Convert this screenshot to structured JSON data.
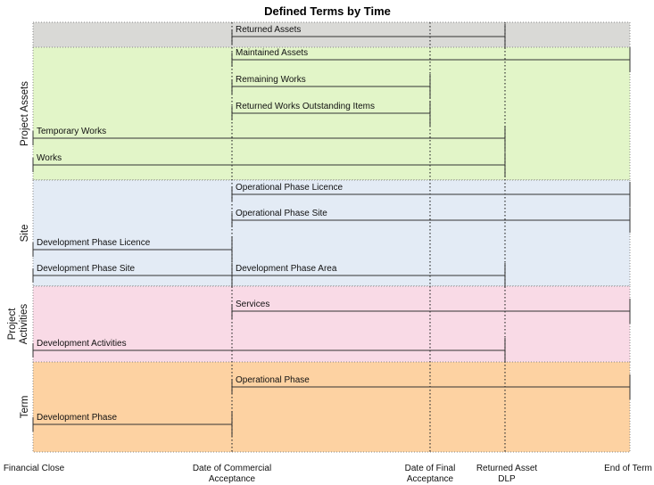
{
  "title": "Defined Terms by Time",
  "milestones": [
    {
      "id": "fc",
      "label": [
        "Financial Close"
      ]
    },
    {
      "id": "dca",
      "label": [
        "Date of Commercial",
        "Acceptance"
      ]
    },
    {
      "id": "dfa",
      "label": [
        "Date of Final",
        "Acceptance"
      ]
    },
    {
      "id": "rad",
      "label": [
        "Returned Asset",
        "DLP"
      ]
    },
    {
      "id": "eot",
      "label": [
        "End of Term"
      ]
    }
  ],
  "bands": [
    {
      "id": "returned",
      "name": "",
      "color": "#d9d9d6"
    },
    {
      "id": "assets",
      "name": [
        "Project Assets"
      ],
      "color": "#e2f5c8"
    },
    {
      "id": "site",
      "name": [
        "Site"
      ],
      "color": "#e3ebf5"
    },
    {
      "id": "activities",
      "name": [
        "Project",
        "Activities"
      ],
      "color": "#f9dae6"
    },
    {
      "id": "term",
      "name": [
        "Term"
      ],
      "color": "#fdd2a2"
    }
  ],
  "terms": [
    {
      "label": "Returned Assets",
      "band": "returned",
      "start": "dca",
      "end": "rad"
    },
    {
      "label": "Maintained Assets",
      "band": "assets",
      "start": "dca",
      "end": "eot"
    },
    {
      "label": "Remaining Works",
      "band": "assets",
      "start": "dca",
      "end": "dfa"
    },
    {
      "label": "Returned Works Outstanding Items",
      "band": "assets",
      "start": "dca",
      "end": "dfa"
    },
    {
      "label": "Temporary Works",
      "band": "assets",
      "start": "fc",
      "end": "rad"
    },
    {
      "label": "Works",
      "band": "assets",
      "start": "fc",
      "end": "rad"
    },
    {
      "label": "Operational Phase Licence",
      "band": "site",
      "start": "dca",
      "end": "eot"
    },
    {
      "label": "Operational Phase Site",
      "band": "site",
      "start": "dca",
      "end": "eot"
    },
    {
      "label": "Development Phase Licence",
      "band": "site",
      "start": "fc",
      "end": "dca"
    },
    {
      "label": "Development Phase Site",
      "band": "site",
      "start": "fc",
      "end": "dca"
    },
    {
      "label": "Development Phase Area",
      "band": "site",
      "start": "dca",
      "end": "rad"
    },
    {
      "label": "Services",
      "band": "activities",
      "start": "dca",
      "end": "eot"
    },
    {
      "label": "Development Activities",
      "band": "activities",
      "start": "fc",
      "end": "rad"
    },
    {
      "label": "Operational Phase",
      "band": "term",
      "start": "dca",
      "end": "eot"
    },
    {
      "label": "Development Phase",
      "band": "term",
      "start": "fc",
      "end": "dca"
    }
  ]
}
